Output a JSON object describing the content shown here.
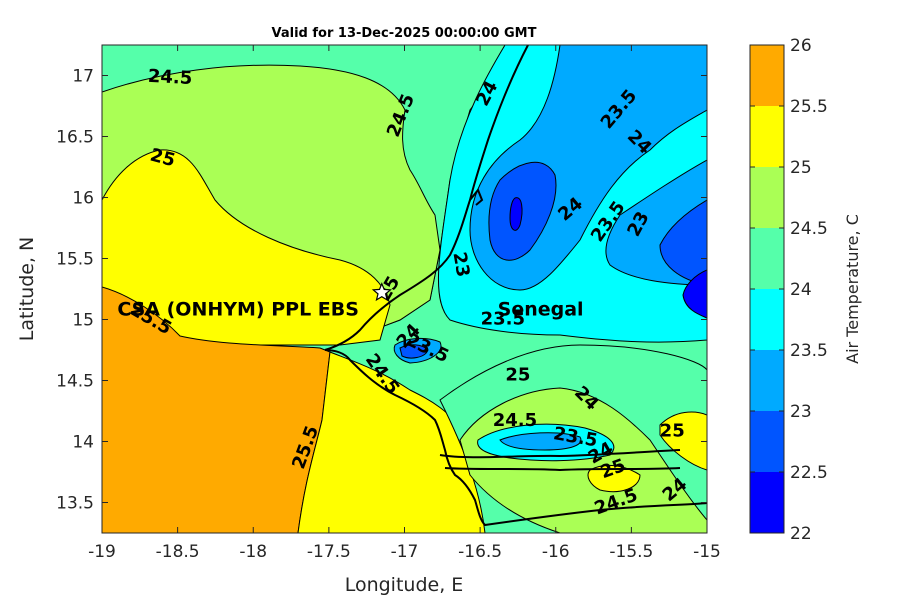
{
  "chart_data": {
    "type": "filled-contour-map",
    "title": "Valid for 13-Dec-2025 00:00:00 GMT",
    "xlabel": "Longitude, E",
    "ylabel": "Latitude, N",
    "xlim": [
      -19,
      -15
    ],
    "ylim": [
      13.25,
      17.25
    ],
    "xticks": [
      -19,
      -18.5,
      -18,
      -17.5,
      -17,
      -16.5,
      -16,
      -15.5,
      -15
    ],
    "xtick_labels": [
      "-19",
      "-18.5",
      "-18",
      "-17.5",
      "-17",
      "-16.5",
      "-16",
      "-15.5",
      "-15"
    ],
    "yticks": [
      13.5,
      14,
      14.5,
      15,
      15.5,
      16,
      16.5,
      17
    ],
    "ytick_labels": [
      "13.5",
      "14",
      "14.5",
      "15",
      "15.5",
      "16",
      "16.5",
      "17"
    ],
    "colorbar": {
      "label": "Air Temperature, C",
      "levels": [
        22,
        22.5,
        23,
        23.5,
        24,
        24.5,
        25,
        25.5,
        26
      ],
      "tick_labels": [
        "22",
        "22.5",
        "23",
        "23.5",
        "24",
        "24.5",
        "25",
        "25.5",
        "26"
      ],
      "colors": [
        "#0000ff",
        "#0055ff",
        "#00aaff",
        "#00ffff",
        "#55ffaa",
        "#aaff55",
        "#ffff00",
        "#ffaa00",
        "#ff5500"
      ]
    },
    "contour_labels": [
      {
        "text": "24.5",
        "lon": -18.55,
        "lat": 16.98,
        "angle": 3
      },
      {
        "text": "24.5",
        "lon": -17.02,
        "lat": 16.67,
        "angle": -68
      },
      {
        "text": "24",
        "lon": -16.45,
        "lat": 16.85,
        "angle": -62
      },
      {
        "text": "23.5",
        "lon": -15.58,
        "lat": 16.72,
        "angle": -50
      },
      {
        "text": "24",
        "lon": -15.45,
        "lat": 16.45,
        "angle": 45
      },
      {
        "text": "25",
        "lon": -18.6,
        "lat": 16.32,
        "angle": 15
      },
      {
        "text": "24",
        "lon": -15.9,
        "lat": 15.9,
        "angle": -40
      },
      {
        "text": "23.5",
        "lon": -15.65,
        "lat": 15.8,
        "angle": -55
      },
      {
        "text": "23",
        "lon": -15.45,
        "lat": 15.78,
        "angle": -62
      },
      {
        "text": "23",
        "lon": -16.63,
        "lat": 15.45,
        "angle": 80
      },
      {
        "text": "25",
        "lon": -17.1,
        "lat": 15.25,
        "angle": -60
      },
      {
        "text": "23.5",
        "lon": -16.35,
        "lat": 15.0,
        "angle": 0
      },
      {
        "text": "25.5",
        "lon": -18.68,
        "lat": 15.0,
        "angle": 30
      },
      {
        "text": "24",
        "lon": -16.97,
        "lat": 14.86,
        "angle": -48
      },
      {
        "text": "23.5",
        "lon": -16.85,
        "lat": 14.76,
        "angle": 25
      },
      {
        "text": "24.5",
        "lon": -17.15,
        "lat": 14.55,
        "angle": 55
      },
      {
        "text": "25",
        "lon": -16.25,
        "lat": 14.54,
        "angle": 0
      },
      {
        "text": "24",
        "lon": -15.8,
        "lat": 14.35,
        "angle": 45
      },
      {
        "text": "24.5",
        "lon": -16.27,
        "lat": 14.17,
        "angle": 0
      },
      {
        "text": "23.5",
        "lon": -15.87,
        "lat": 14.03,
        "angle": 10
      },
      {
        "text": "25",
        "lon": -15.23,
        "lat": 14.08,
        "angle": 0
      },
      {
        "text": "24",
        "lon": -15.7,
        "lat": 13.9,
        "angle": -30
      },
      {
        "text": "25",
        "lon": -15.62,
        "lat": 13.77,
        "angle": -20
      },
      {
        "text": "25.5",
        "lon": -17.65,
        "lat": 13.95,
        "angle": -70
      },
      {
        "text": "24.5",
        "lon": -15.6,
        "lat": 13.5,
        "angle": -20
      },
      {
        "text": "24",
        "lon": -15.21,
        "lat": 13.6,
        "angle": -40
      }
    ],
    "annotations": [
      {
        "text": "CSA (ONHYM) PPL EBS",
        "lon": -18.1,
        "lat": 15.09
      },
      {
        "text": "Senegal",
        "lon": -16.1,
        "lat": 15.09
      }
    ],
    "marker": {
      "symbol": "star",
      "lon": -17.15,
      "lat": 15.22
    }
  }
}
